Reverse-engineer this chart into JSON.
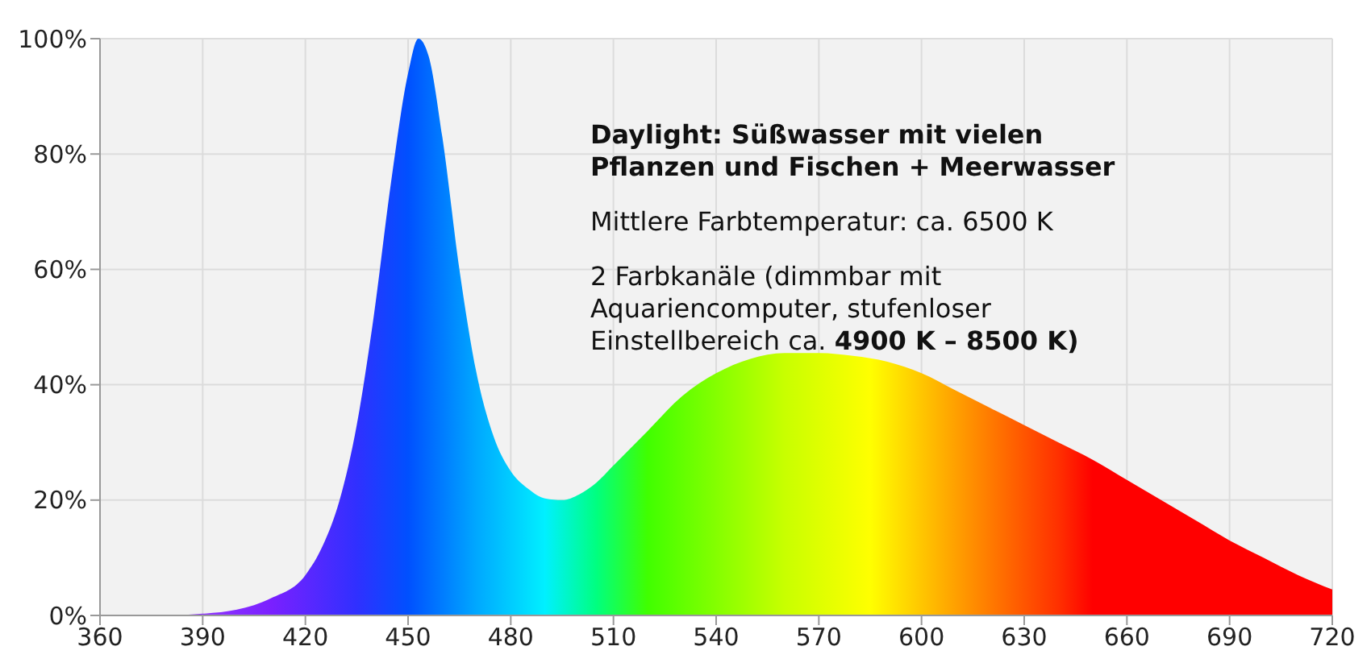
{
  "chart_data": {
    "type": "area",
    "x": [
      360,
      380,
      390,
      400,
      410,
      420,
      425,
      430,
      435,
      440,
      445,
      450,
      453,
      456,
      460,
      465,
      470,
      475,
      480,
      485,
      490,
      495,
      500,
      505,
      510,
      520,
      530,
      540,
      550,
      560,
      570,
      580,
      590,
      600,
      610,
      620,
      630,
      640,
      650,
      660,
      670,
      680,
      690,
      700,
      710,
      720
    ],
    "values": [
      0,
      0,
      0.3,
      1,
      3,
      7,
      12,
      20,
      33,
      52,
      75,
      94,
      100,
      97,
      83,
      60,
      42,
      31,
      25,
      22,
      20.3,
      20,
      21,
      23,
      26,
      32,
      38,
      42,
      44.5,
      45.5,
      45.5,
      45,
      44,
      42,
      39,
      36,
      33,
      30,
      27,
      23.5,
      20,
      16.5,
      13,
      10,
      7,
      4.5
    ],
    "xlim": [
      360,
      720
    ],
    "xticks": [
      360,
      390,
      420,
      450,
      480,
      510,
      540,
      570,
      600,
      630,
      660,
      690,
      720
    ],
    "ylim": [
      0,
      100
    ],
    "yticks": [
      {
        "value": 0,
        "label": "0%"
      },
      {
        "value": 20,
        "label": "20%"
      },
      {
        "value": 40,
        "label": "40%"
      },
      {
        "value": 60,
        "label": "60%"
      },
      {
        "value": 80,
        "label": "80%"
      },
      {
        "value": 100,
        "label": "100%"
      }
    ],
    "grid": true,
    "annotations": [
      "Daylight: Süßwasser mit vielen",
      "Pflanzen und Fischen + Meerwasser",
      "Mittlere Farbtemperatur: ca. 6500 K",
      "2 Farbkanäle (dimmbar mit",
      "Aquariencomputer, stufenloser",
      "Einstellbereich ca.",
      "4900 K – 8500 K)"
    ]
  }
}
